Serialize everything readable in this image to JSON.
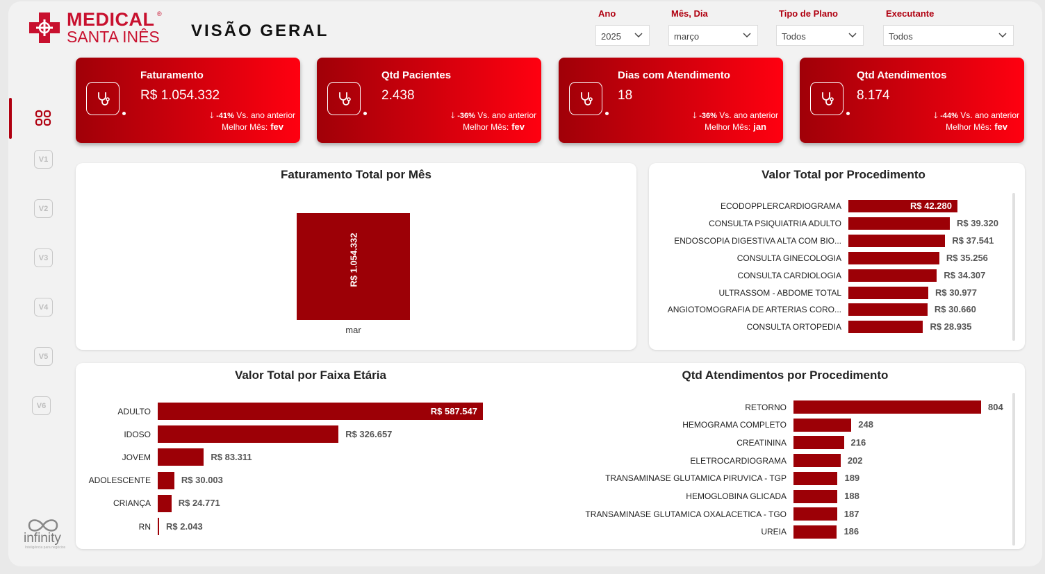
{
  "brand": {
    "line1": "MEDICAL",
    "line2": "SANTA INÊS",
    "reg": "®",
    "color": "#c8102e"
  },
  "page_title": "VISÃO GERAL",
  "filters": [
    {
      "label": "Ano",
      "value": "2025"
    },
    {
      "label": "Mês, Dia",
      "value": "março"
    },
    {
      "label": "Tipo de Plano",
      "value": "Todos"
    },
    {
      "label": "Executante",
      "value": "Todos"
    }
  ],
  "nav": [
    "V1",
    "V2",
    "V3",
    "V4",
    "V5",
    "V6"
  ],
  "kpis": [
    {
      "label": "Faturamento",
      "value": "R$ 1.054.332",
      "delta_pct": "-41%",
      "delta_text": "Vs. ano anterior",
      "best_label": "Melhor Mês:",
      "best_value": "fev"
    },
    {
      "label": "Qtd Pacientes",
      "value": "2.438",
      "delta_pct": "-36%",
      "delta_text": "Vs. ano anterior",
      "best_label": "Melhor Mês:",
      "best_value": "fev"
    },
    {
      "label": "Dias com Atendimento",
      "value": "18",
      "delta_pct": "-36%",
      "delta_text": "Vs. ano anterior",
      "best_label": "Melhor Mês:",
      "best_value": "jan"
    },
    {
      "label": "Qtd Atendimentos",
      "value": "8.174",
      "delta_pct": "-44%",
      "delta_text": "Vs. ano anterior",
      "best_label": "Melhor Mês:",
      "best_value": "fev"
    }
  ],
  "chart_data": [
    {
      "type": "bar",
      "title": "Faturamento Total por Mês",
      "categories": [
        "mar"
      ],
      "values": [
        1054332
      ],
      "value_labels": [
        "R$ 1.054.332"
      ]
    },
    {
      "type": "bar",
      "orientation": "horizontal",
      "title": "Valor Total por Procedimento",
      "categories": [
        "ECODOPPLERCARDIOGRAMA",
        "CONSULTA PSIQUIATRIA ADULTO",
        "ENDOSCOPIA DIGESTIVA ALTA COM BIO...",
        "CONSULTA GINECOLOGIA",
        "CONSULTA CARDIOLOGIA",
        "ULTRASSOM - ABDOME TOTAL",
        "ANGIOTOMOGRAFIA DE ARTERIAS CORO...",
        "CONSULTA ORTOPEDIA"
      ],
      "values": [
        42280,
        39320,
        37541,
        35256,
        34307,
        30977,
        30660,
        28935
      ],
      "value_labels": [
        "R$ 42.280",
        "R$ 39.320",
        "R$ 37.541",
        "R$ 35.256",
        "R$ 34.307",
        "R$ 30.977",
        "R$ 30.660",
        "R$ 28.935"
      ]
    },
    {
      "type": "bar",
      "orientation": "horizontal",
      "title": "Valor Total por Faixa Etária",
      "categories": [
        "ADULTO",
        "IDOSO",
        "JOVEM",
        "ADOLESCENTE",
        "CRIANÇA",
        "RN"
      ],
      "values": [
        587547,
        326657,
        83311,
        30003,
        24771,
        2043
      ],
      "value_labels": [
        "R$ 587.547",
        "R$ 326.657",
        "R$ 83.311",
        "R$ 30.003",
        "R$ 24.771",
        "R$ 2.043"
      ]
    },
    {
      "type": "bar",
      "orientation": "horizontal",
      "title": "Qtd Atendimentos por Procedimento",
      "categories": [
        "RETORNO",
        "HEMOGRAMA COMPLETO",
        "CREATININA",
        "ELETROCARDIOGRAMA",
        "TRANSAMINASE GLUTAMICA PIRUVICA - TGP",
        "HEMOGLOBINA GLICADA",
        "TRANSAMINASE GLUTAMICA OXALACETICA - TGO",
        "UREIA"
      ],
      "values": [
        804,
        248,
        216,
        202,
        189,
        188,
        187,
        186
      ],
      "value_labels": [
        "804",
        "248",
        "216",
        "202",
        "189",
        "188",
        "187",
        "186"
      ]
    }
  ],
  "footer_logo": {
    "name": "infinity",
    "tagline": "Inteligência para negócios"
  },
  "colors": {
    "bar": "#9c0006",
    "accent": "#c8102e",
    "kpi_from": "#a00008",
    "kpi_to": "#ff0010"
  }
}
